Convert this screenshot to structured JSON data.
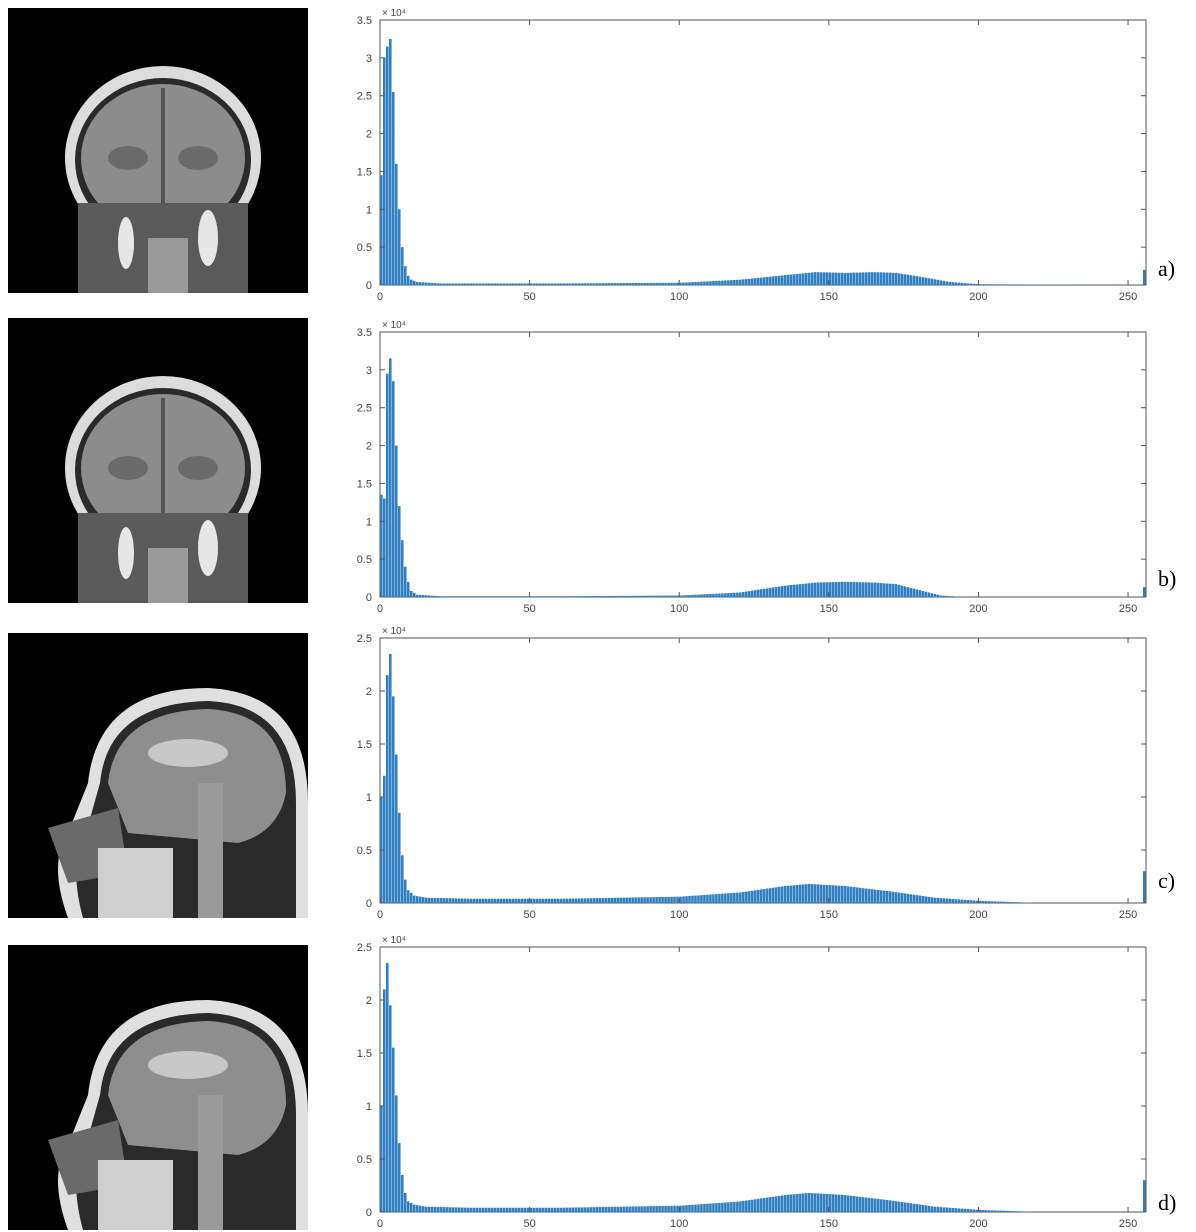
{
  "panels": [
    {
      "label": "a)",
      "view": "coronal"
    },
    {
      "label": "b)",
      "view": "coronal"
    },
    {
      "label": "c)",
      "view": "sagittal"
    },
    {
      "label": "d)",
      "view": "sagittal"
    }
  ],
  "colors": {
    "bar": "#2f7fc1",
    "axis": "#555555",
    "mri_background": "#000000"
  },
  "chart_data": [
    {
      "type": "bar",
      "xlim": [
        0,
        256
      ],
      "ylim": [
        0,
        3.5
      ],
      "xticks": [
        "0",
        "50",
        "100",
        "150",
        "200",
        "250"
      ],
      "yticks": [
        "0",
        "0.5",
        "1",
        "1.5",
        "2",
        "2.5",
        "3",
        "3.5"
      ],
      "y_exponent_label": "× 10⁴",
      "grid": false,
      "peaks": [
        {
          "x": 0,
          "y": 1.45
        },
        {
          "x": 1,
          "y": 3.0
        },
        {
          "x": 2,
          "y": 3.15
        },
        {
          "x": 3,
          "y": 3.25
        },
        {
          "x": 4,
          "y": 2.55
        },
        {
          "x": 5,
          "y": 1.6
        },
        {
          "x": 6,
          "y": 1.0
        },
        {
          "x": 7,
          "y": 0.5
        },
        {
          "x": 8,
          "y": 0.25
        },
        {
          "x": 9,
          "y": 0.12
        },
        {
          "x": 10,
          "y": 0.07
        },
        {
          "x": 12,
          "y": 0.04
        },
        {
          "x": 20,
          "y": 0.02
        },
        {
          "x": 60,
          "y": 0.02
        },
        {
          "x": 100,
          "y": 0.03
        },
        {
          "x": 120,
          "y": 0.07
        },
        {
          "x": 135,
          "y": 0.13
        },
        {
          "x": 145,
          "y": 0.17
        },
        {
          "x": 155,
          "y": 0.16
        },
        {
          "x": 165,
          "y": 0.17
        },
        {
          "x": 172,
          "y": 0.16
        },
        {
          "x": 180,
          "y": 0.11
        },
        {
          "x": 190,
          "y": 0.04
        },
        {
          "x": 200,
          "y": 0.01
        },
        {
          "x": 254,
          "y": 0.0
        },
        {
          "x": 255,
          "y": 0.2
        }
      ]
    },
    {
      "type": "bar",
      "xlim": [
        0,
        256
      ],
      "ylim": [
        0,
        3.5
      ],
      "xticks": [
        "0",
        "50",
        "100",
        "150",
        "200",
        "250"
      ],
      "yticks": [
        "0",
        "0.5",
        "1",
        "1.5",
        "2",
        "2.5",
        "3",
        "3.5"
      ],
      "y_exponent_label": "× 10⁴",
      "grid": false,
      "peaks": [
        {
          "x": 0,
          "y": 1.35
        },
        {
          "x": 1,
          "y": 1.3
        },
        {
          "x": 2,
          "y": 2.95
        },
        {
          "x": 3,
          "y": 3.15
        },
        {
          "x": 4,
          "y": 2.85
        },
        {
          "x": 5,
          "y": 2.0
        },
        {
          "x": 6,
          "y": 1.2
        },
        {
          "x": 7,
          "y": 0.75
        },
        {
          "x": 8,
          "y": 0.4
        },
        {
          "x": 9,
          "y": 0.2
        },
        {
          "x": 10,
          "y": 0.08
        },
        {
          "x": 12,
          "y": 0.03
        },
        {
          "x": 20,
          "y": 0.01
        },
        {
          "x": 60,
          "y": 0.01
        },
        {
          "x": 100,
          "y": 0.02
        },
        {
          "x": 120,
          "y": 0.06
        },
        {
          "x": 135,
          "y": 0.15
        },
        {
          "x": 145,
          "y": 0.19
        },
        {
          "x": 155,
          "y": 0.2
        },
        {
          "x": 165,
          "y": 0.19
        },
        {
          "x": 172,
          "y": 0.17
        },
        {
          "x": 180,
          "y": 0.09
        },
        {
          "x": 187,
          "y": 0.02
        },
        {
          "x": 195,
          "y": 0.0
        },
        {
          "x": 254,
          "y": 0.0
        },
        {
          "x": 255,
          "y": 0.13
        }
      ]
    },
    {
      "type": "bar",
      "xlim": [
        0,
        256
      ],
      "ylim": [
        0,
        2.5
      ],
      "xticks": [
        "0",
        "50",
        "100",
        "150",
        "200",
        "250"
      ],
      "yticks": [
        "0",
        "0.5",
        "1",
        "1.5",
        "2",
        "2.5"
      ],
      "y_exponent_label": "× 10⁴",
      "grid": false,
      "peaks": [
        {
          "x": 0,
          "y": 1.0
        },
        {
          "x": 1,
          "y": 1.2
        },
        {
          "x": 2,
          "y": 2.15
        },
        {
          "x": 3,
          "y": 2.35
        },
        {
          "x": 4,
          "y": 1.95
        },
        {
          "x": 5,
          "y": 1.4
        },
        {
          "x": 6,
          "y": 0.85
        },
        {
          "x": 7,
          "y": 0.45
        },
        {
          "x": 8,
          "y": 0.22
        },
        {
          "x": 9,
          "y": 0.12
        },
        {
          "x": 11,
          "y": 0.07
        },
        {
          "x": 15,
          "y": 0.05
        },
        {
          "x": 30,
          "y": 0.04
        },
        {
          "x": 60,
          "y": 0.04
        },
        {
          "x": 100,
          "y": 0.06
        },
        {
          "x": 120,
          "y": 0.1
        },
        {
          "x": 135,
          "y": 0.16
        },
        {
          "x": 143,
          "y": 0.18
        },
        {
          "x": 155,
          "y": 0.16
        },
        {
          "x": 170,
          "y": 0.11
        },
        {
          "x": 185,
          "y": 0.05
        },
        {
          "x": 200,
          "y": 0.02
        },
        {
          "x": 210,
          "y": 0.01
        },
        {
          "x": 220,
          "y": 0.0
        },
        {
          "x": 254,
          "y": 0.0
        },
        {
          "x": 255,
          "y": 0.3
        }
      ]
    },
    {
      "type": "bar",
      "xlim": [
        0,
        256
      ],
      "ylim": [
        0,
        2.5
      ],
      "xticks": [
        "0",
        "50",
        "100",
        "150",
        "200",
        "250"
      ],
      "yticks": [
        "0",
        "0.5",
        "1",
        "1.5",
        "2",
        "2.5"
      ],
      "y_exponent_label": "× 10⁴",
      "grid": false,
      "peaks": [
        {
          "x": 0,
          "y": 1.0
        },
        {
          "x": 1,
          "y": 2.1
        },
        {
          "x": 2,
          "y": 2.35
        },
        {
          "x": 3,
          "y": 1.95
        },
        {
          "x": 4,
          "y": 1.55
        },
        {
          "x": 5,
          "y": 1.1
        },
        {
          "x": 6,
          "y": 0.65
        },
        {
          "x": 7,
          "y": 0.35
        },
        {
          "x": 8,
          "y": 0.18
        },
        {
          "x": 9,
          "y": 0.1
        },
        {
          "x": 11,
          "y": 0.07
        },
        {
          "x": 15,
          "y": 0.05
        },
        {
          "x": 30,
          "y": 0.04
        },
        {
          "x": 60,
          "y": 0.04
        },
        {
          "x": 100,
          "y": 0.06
        },
        {
          "x": 120,
          "y": 0.1
        },
        {
          "x": 135,
          "y": 0.16
        },
        {
          "x": 143,
          "y": 0.18
        },
        {
          "x": 155,
          "y": 0.16
        },
        {
          "x": 170,
          "y": 0.11
        },
        {
          "x": 185,
          "y": 0.05
        },
        {
          "x": 200,
          "y": 0.02
        },
        {
          "x": 210,
          "y": 0.01
        },
        {
          "x": 220,
          "y": 0.0
        },
        {
          "x": 254,
          "y": 0.0
        },
        {
          "x": 255,
          "y": 0.3
        }
      ]
    }
  ]
}
